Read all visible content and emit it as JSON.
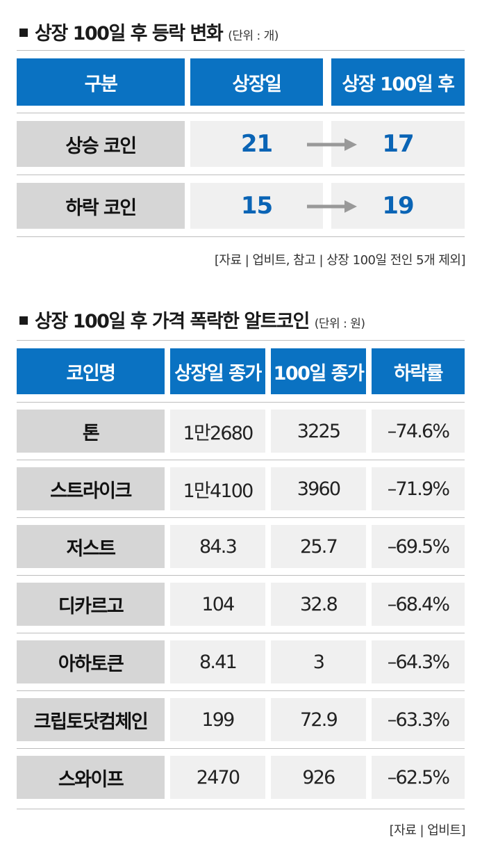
{
  "table1": {
    "title": "상장 100일 후 등락 변화",
    "unit": "(단위 : 개)",
    "headers": [
      "구분",
      "상장일",
      "상장 100일 후"
    ],
    "rows": [
      {
        "label": "상승 코인",
        "listing": "21",
        "after100": "17"
      },
      {
        "label": "하락 코인",
        "listing": "15",
        "after100": "19"
      }
    ],
    "source": "[자료 | 업비트, 참고 | 상장 100일 전인 5개 제외]"
  },
  "table2": {
    "title": "상장 100일 후 가격 폭락한 알트코인",
    "unit": "(단위 : 원)",
    "headers": [
      "코인명",
      "상장일 종가",
      "100일 종가",
      "하락률"
    ],
    "rows": [
      {
        "name": "톤",
        "listing_close": "1만2680",
        "close_100": "3225",
        "drop": "–74.6%"
      },
      {
        "name": "스트라이크",
        "listing_close": "1만4100",
        "close_100": "3960",
        "drop": "–71.9%"
      },
      {
        "name": "저스트",
        "listing_close": "84.3",
        "close_100": "25.7",
        "drop": "–69.5%"
      },
      {
        "name": "디카르고",
        "listing_close": "104",
        "close_100": "32.8",
        "drop": "–68.4%"
      },
      {
        "name": "아하토큰",
        "listing_close": "8.41",
        "close_100": "3",
        "drop": "–64.3%"
      },
      {
        "name": "크립토닷컴체인",
        "listing_close": "199",
        "close_100": "72.9",
        "drop": "–63.3%"
      },
      {
        "name": "스와이프",
        "listing_close": "2470",
        "close_100": "926",
        "drop": "–62.5%"
      }
    ],
    "source": "[자료 | 업비트]"
  },
  "colors": {
    "header_blue": "#0a72c2",
    "value_blue": "#0a64b5",
    "label_gray": "#d6d6d6",
    "value_gray": "#f0f0f0",
    "arrow_gray": "#999999"
  }
}
